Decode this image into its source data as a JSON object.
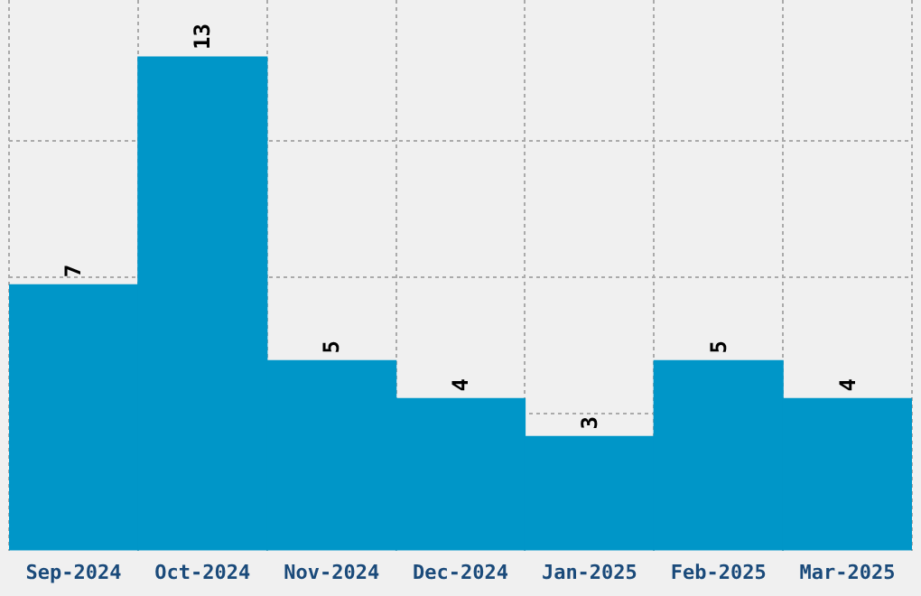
{
  "chart_data": {
    "type": "bar",
    "categories": [
      "Sep-2024",
      "Oct-2024",
      "Nov-2024",
      "Dec-2024",
      "Jan-2025",
      "Feb-2025",
      "Mar-2025"
    ],
    "values": [
      7,
      13,
      5,
      4,
      3,
      5,
      4
    ],
    "color": "#0096c8",
    "ylim": [
      0,
      14.5
    ],
    "yticks": [
      {
        "value": 3.6,
        "label": null
      },
      {
        "value": 7.2,
        "label": null
      },
      {
        "value": 10.8,
        "label": null
      }
    ],
    "grid": true,
    "data_labels": true,
    "tick_labels": "x"
  }
}
